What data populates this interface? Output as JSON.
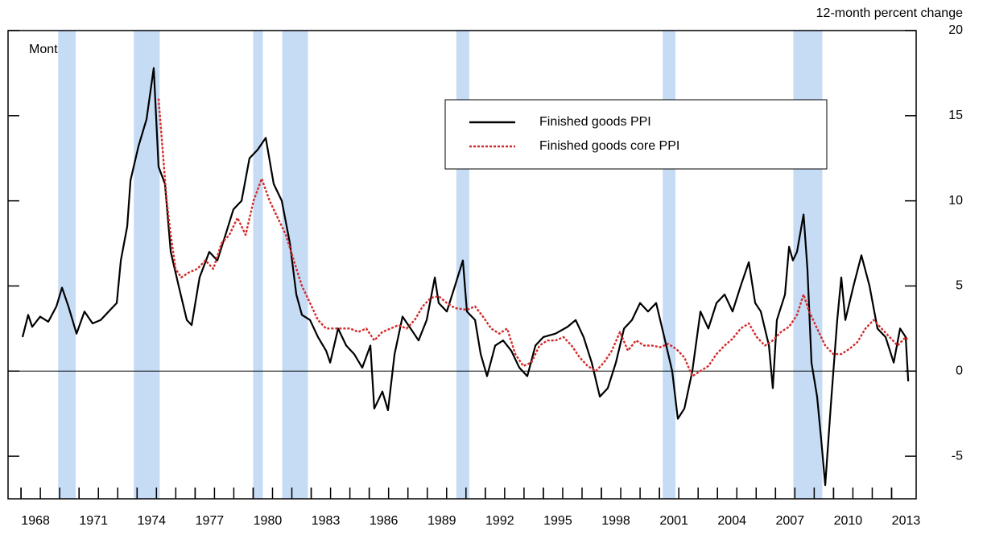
{
  "chart_data": {
    "type": "line",
    "y_label": "12-month percent change",
    "annotation": "Monthly",
    "xlim": [
      1967.33,
      2014.27
    ],
    "xticks": [
      1968,
      1971,
      1974,
      1977,
      1980,
      1983,
      1986,
      1989,
      1992,
      1995,
      1998,
      2001,
      2004,
      2007,
      2010,
      2013
    ],
    "xticks_minor": [
      1968,
      1969,
      1970,
      1971,
      1972,
      1973,
      1974,
      1975,
      1976,
      1977,
      1978,
      1979,
      1980,
      1981,
      1982,
      1983,
      1984,
      1985,
      1986,
      1987,
      1988,
      1989,
      1990,
      1991,
      1992,
      1993,
      1994,
      1995,
      1996,
      1997,
      1998,
      1999,
      2000,
      2001,
      2002,
      2003,
      2004,
      2005,
      2006,
      2007,
      2008,
      2009,
      2010,
      2011,
      2012,
      2013
    ],
    "ylim": [
      -7.5,
      20
    ],
    "yticks": [
      -5,
      0,
      5,
      10,
      15,
      20
    ],
    "reference_line": 0,
    "shaded_regions": [
      [
        1969.92,
        1970.83
      ],
      [
        1973.83,
        1975.17
      ],
      [
        1980.0,
        1980.5
      ],
      [
        1981.5,
        1982.83
      ],
      [
        1990.5,
        1991.17
      ],
      [
        2001.17,
        2001.83
      ],
      [
        2007.92,
        2009.42
      ]
    ],
    "shade_color": "#c6dcf5",
    "series": [
      {
        "name": "Finished goods PPI",
        "color": "#000000",
        "dash": "solid",
        "x": [
          1968.08,
          1968.37,
          1968.58,
          1968.99,
          1969.41,
          1969.83,
          1970.12,
          1970.45,
          1970.87,
          1971.28,
          1971.7,
          1972.12,
          1972.53,
          1972.95,
          1973.16,
          1973.49,
          1973.66,
          1974.07,
          1974.49,
          1974.86,
          1975.11,
          1975.44,
          1975.74,
          1976.15,
          1976.57,
          1976.82,
          1977.23,
          1977.73,
          1978.15,
          1978.57,
          1978.98,
          1979.4,
          1979.81,
          1980.23,
          1980.65,
          1981.06,
          1981.48,
          1981.9,
          1982.23,
          1982.52,
          1982.94,
          1983.35,
          1983.77,
          1983.98,
          1984.39,
          1984.81,
          1985.22,
          1985.64,
          1986.06,
          1986.26,
          1986.68,
          1986.97,
          1987.31,
          1987.72,
          1988.14,
          1988.55,
          1988.97,
          1989.39,
          1989.59,
          1990.01,
          1990.43,
          1990.84,
          1991.05,
          1991.47,
          1991.76,
          1992.09,
          1992.51,
          1992.92,
          1993.34,
          1993.76,
          1994.17,
          1994.59,
          1995.0,
          1995.63,
          1996.25,
          1996.67,
          1997.08,
          1997.5,
          1997.92,
          1998.33,
          1998.75,
          1999.17,
          1999.58,
          2000.0,
          2000.41,
          2000.83,
          2001.25,
          2001.66,
          2001.95,
          2002.29,
          2002.7,
          2003.12,
          2003.53,
          2003.95,
          2004.37,
          2004.78,
          2005.2,
          2005.62,
          2005.95,
          2006.24,
          2006.66,
          2006.86,
          2007.07,
          2007.49,
          2007.7,
          2007.9,
          2008.11,
          2008.45,
          2008.65,
          2008.86,
          2009.15,
          2009.36,
          2009.57,
          2009.86,
          2010.19,
          2010.4,
          2010.61,
          2011.03,
          2011.44,
          2011.86,
          2012.27,
          2012.69,
          2013.11,
          2013.44,
          2013.73,
          2013.86
        ],
        "values": [
          2.0,
          3.3,
          2.6,
          3.2,
          2.9,
          3.8,
          4.9,
          3.8,
          2.2,
          3.5,
          2.8,
          3.0,
          3.5,
          4.0,
          6.5,
          8.5,
          11.2,
          13.2,
          14.8,
          17.8,
          12.0,
          11.0,
          7.0,
          5.0,
          3.0,
          2.7,
          5.5,
          7.0,
          6.5,
          8.0,
          9.5,
          10.0,
          12.5,
          13.0,
          13.7,
          11.0,
          10.0,
          7.5,
          4.5,
          3.3,
          3.0,
          2.0,
          1.2,
          0.5,
          2.5,
          1.5,
          1.0,
          0.2,
          1.5,
          -2.2,
          -1.2,
          -2.3,
          1.0,
          3.2,
          2.5,
          1.8,
          3.0,
          5.5,
          4.0,
          3.5,
          5.0,
          6.5,
          3.5,
          3.0,
          1.0,
          -0.3,
          1.5,
          1.8,
          1.2,
          0.2,
          -0.3,
          1.5,
          2.0,
          2.2,
          2.6,
          3.0,
          2.0,
          0.5,
          -1.5,
          -1.0,
          0.5,
          2.5,
          3.0,
          4.0,
          3.5,
          4.0,
          2.0,
          0.0,
          -2.8,
          -2.2,
          0.0,
          3.5,
          2.5,
          4.0,
          4.5,
          3.5,
          5.0,
          6.4,
          4.0,
          3.5,
          1.5,
          -1.0,
          3.0,
          4.5,
          7.3,
          6.5,
          7.0,
          9.2,
          6.0,
          0.5,
          -1.5,
          -4.0,
          -6.7,
          -2.0,
          3.0,
          5.5,
          3.0,
          5.0,
          6.8,
          5.0,
          2.5,
          2.0,
          0.5,
          2.5,
          2.0,
          -0.6
        ]
      },
      {
        "name": "Finished goods core PPI",
        "color": "#d42a2a",
        "dash": "dotted",
        "x": [
          1975.11,
          1975.32,
          1975.53,
          1975.74,
          1975.99,
          1976.28,
          1976.69,
          1977.11,
          1977.53,
          1977.94,
          1978.36,
          1978.77,
          1979.19,
          1979.61,
          1980.02,
          1980.44,
          1980.85,
          1981.27,
          1981.69,
          1982.1,
          1982.52,
          1982.94,
          1983.35,
          1983.77,
          1984.39,
          1985.02,
          1985.43,
          1985.85,
          1986.26,
          1986.68,
          1987.1,
          1987.51,
          1987.93,
          1988.35,
          1988.76,
          1989.18,
          1989.59,
          1990.01,
          1990.43,
          1991.05,
          1991.47,
          1991.88,
          1992.3,
          1992.72,
          1993.13,
          1993.55,
          1993.96,
          1994.38,
          1994.8,
          1995.21,
          1995.63,
          1996.04,
          1996.46,
          1996.88,
          1997.29,
          1997.71,
          1998.13,
          1998.54,
          1998.96,
          1999.37,
          1999.79,
          2000.21,
          2000.62,
          2001.04,
          2001.45,
          2001.87,
          2002.29,
          2002.7,
          2003.12,
          2003.53,
          2003.95,
          2004.37,
          2004.78,
          2005.2,
          2005.62,
          2006.03,
          2006.45,
          2006.86,
          2007.28,
          2007.7,
          2008.11,
          2008.45,
          2008.74,
          2009.15,
          2009.57,
          2009.98,
          2010.4,
          2010.82,
          2011.23,
          2011.65,
          2012.07,
          2012.48,
          2012.9,
          2013.31,
          2013.73,
          2013.86
        ],
        "values": [
          16.0,
          13.0,
          10.0,
          8.0,
          6.0,
          5.5,
          5.8,
          6.0,
          6.5,
          6.0,
          7.5,
          8.0,
          9.0,
          8.0,
          10.0,
          11.3,
          10.0,
          9.0,
          8.0,
          6.5,
          5.0,
          4.0,
          3.0,
          2.5,
          2.5,
          2.5,
          2.3,
          2.5,
          1.8,
          2.3,
          2.5,
          2.7,
          2.5,
          3.0,
          3.8,
          4.3,
          4.4,
          4.0,
          3.7,
          3.6,
          3.8,
          3.2,
          2.5,
          2.2,
          2.5,
          1.0,
          0.3,
          0.5,
          1.5,
          1.8,
          1.8,
          2.0,
          1.5,
          0.8,
          0.3,
          0.0,
          0.5,
          1.2,
          2.3,
          1.2,
          1.8,
          1.5,
          1.5,
          1.4,
          1.6,
          1.3,
          0.8,
          -0.3,
          0.0,
          0.3,
          1.0,
          1.5,
          1.9,
          2.5,
          2.8,
          2.0,
          1.5,
          1.8,
          2.3,
          2.6,
          3.3,
          4.5,
          3.5,
          2.5,
          1.5,
          1.0,
          1.0,
          1.3,
          1.7,
          2.5,
          3.0,
          2.5,
          2.0,
          1.5,
          2.0,
          1.8
        ]
      }
    ]
  }
}
